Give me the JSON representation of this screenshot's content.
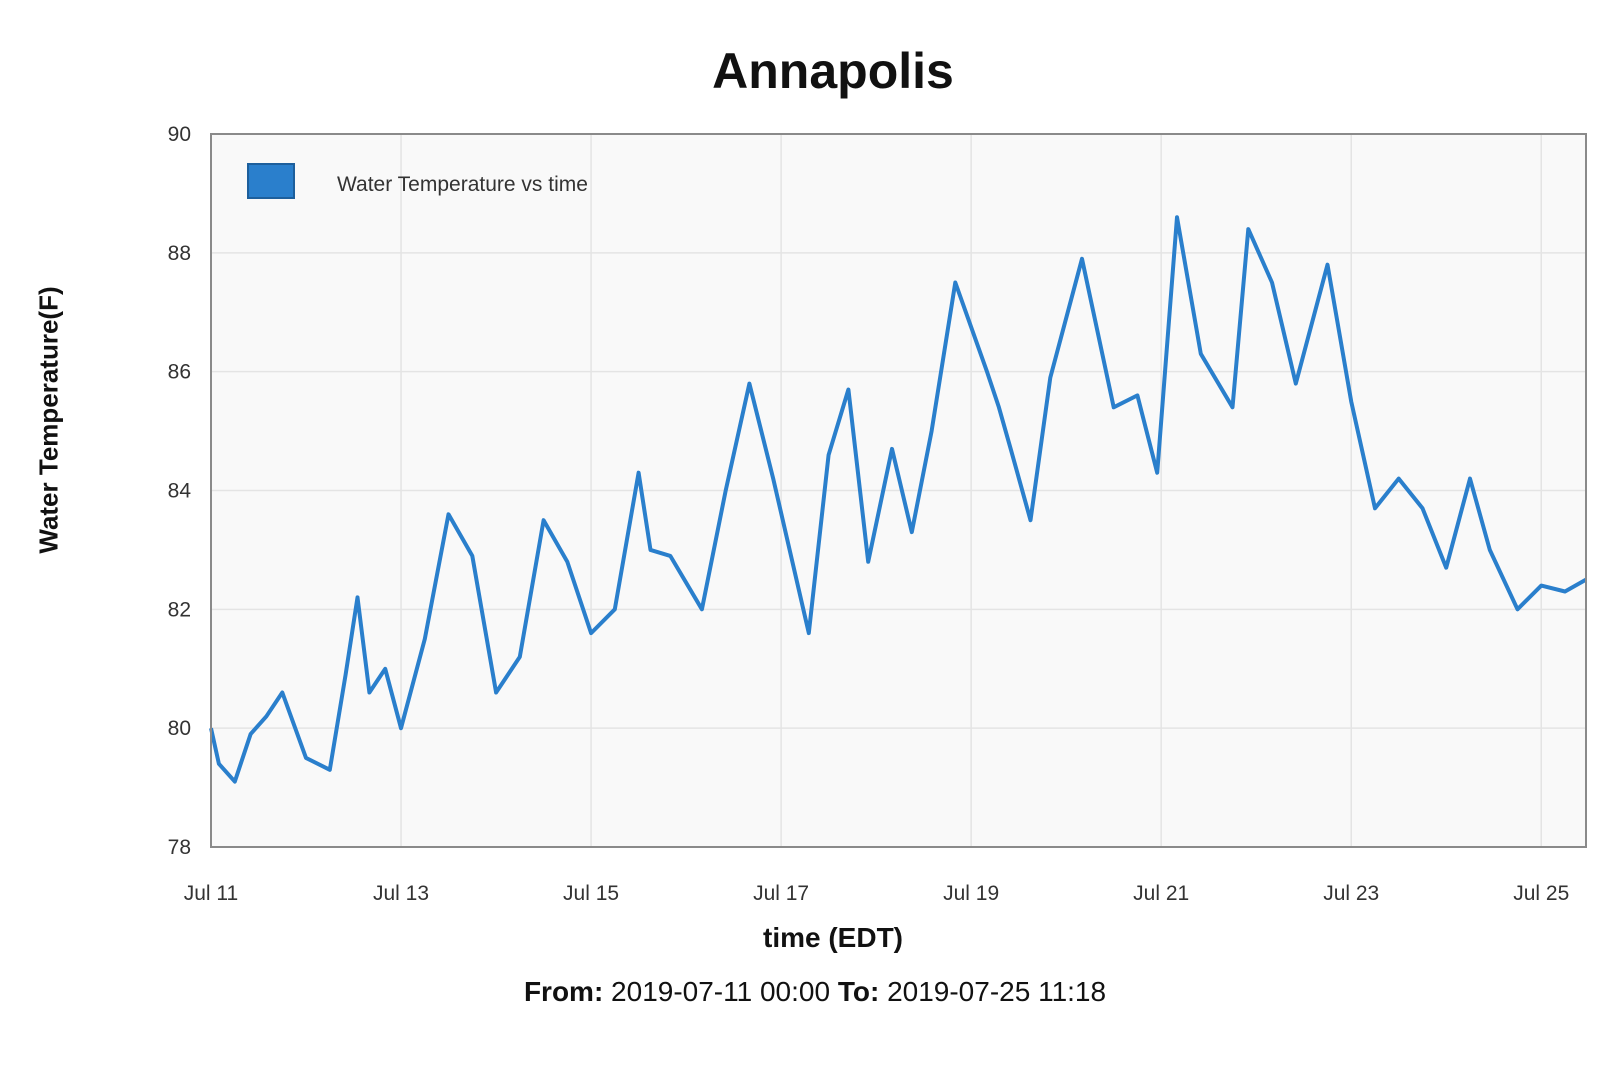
{
  "chart_data": {
    "type": "line",
    "title": "Annapolis",
    "xlabel": "time (EDT)",
    "ylabel": "Water Temperature(F)",
    "ylim": [
      78,
      90
    ],
    "xlim": [
      "2019-07-11 00:00",
      "2019-07-25 11:18"
    ],
    "x_ticks": [
      "Jul 11",
      "Jul 13",
      "Jul 15",
      "Jul 17",
      "Jul 19",
      "Jul 21",
      "Jul 23",
      "Jul 25"
    ],
    "y_ticks": [
      78,
      80,
      82,
      84,
      86,
      88,
      90
    ],
    "grid": true,
    "legend_position": "top-left",
    "series": [
      {
        "name": "Water Temperature vs time",
        "color": "#2a7fcc",
        "x": [
          "2019-07-11 00:00",
          "2019-07-11 02:00",
          "2019-07-11 06:00",
          "2019-07-11 10:00",
          "2019-07-11 14:00",
          "2019-07-11 18:00",
          "2019-07-12 00:00",
          "2019-07-12 06:00",
          "2019-07-12 10:00",
          "2019-07-12 13:00",
          "2019-07-12 16:00",
          "2019-07-12 20:00",
          "2019-07-13 00:00",
          "2019-07-13 06:00",
          "2019-07-13 12:00",
          "2019-07-13 18:00",
          "2019-07-14 00:00",
          "2019-07-14 06:00",
          "2019-07-14 12:00",
          "2019-07-14 18:00",
          "2019-07-15 00:00",
          "2019-07-15 06:00",
          "2019-07-15 12:00",
          "2019-07-15 15:00",
          "2019-07-15 20:00",
          "2019-07-16 04:00",
          "2019-07-16 10:00",
          "2019-07-16 16:00",
          "2019-07-16 22:00",
          "2019-07-17 07:00",
          "2019-07-17 12:00",
          "2019-07-17 17:00",
          "2019-07-17 22:00",
          "2019-07-18 04:00",
          "2019-07-18 09:00",
          "2019-07-18 14:00",
          "2019-07-18 20:00",
          "2019-07-19 04:00",
          "2019-07-19 07:00",
          "2019-07-19 10:00",
          "2019-07-19 15:00",
          "2019-07-19 20:00",
          "2019-07-20 04:00",
          "2019-07-20 12:00",
          "2019-07-20 18:00",
          "2019-07-20 23:00",
          "2019-07-21 04:00",
          "2019-07-21 10:00",
          "2019-07-21 18:00",
          "2019-07-21 22:00",
          "2019-07-22 04:00",
          "2019-07-22 10:00",
          "2019-07-22 18:00",
          "2019-07-23 00:00",
          "2019-07-23 06:00",
          "2019-07-23 12:00",
          "2019-07-23 18:00",
          "2019-07-24 00:00",
          "2019-07-24 06:00",
          "2019-07-24 11:00",
          "2019-07-24 18:00",
          "2019-07-25 00:00",
          "2019-07-25 06:00",
          "2019-07-25 11:18"
        ],
        "y": [
          80.0,
          79.4,
          79.1,
          79.9,
          80.2,
          80.6,
          79.5,
          79.3,
          80.9,
          82.2,
          80.6,
          81.0,
          80.0,
          81.5,
          83.6,
          82.9,
          80.6,
          81.2,
          83.5,
          82.8,
          81.6,
          82.0,
          84.3,
          83.0,
          82.9,
          82.0,
          84.0,
          85.8,
          84.2,
          81.6,
          84.6,
          85.7,
          82.8,
          84.7,
          83.3,
          85.0,
          87.5,
          86.0,
          85.4,
          84.7,
          83.5,
          85.9,
          87.9,
          85.4,
          85.6,
          84.3,
          88.6,
          86.3,
          85.4,
          88.4,
          87.5,
          85.8,
          87.8,
          85.5,
          83.7,
          84.2,
          83.7,
          82.7,
          84.2,
          83.0,
          82.0,
          82.4,
          82.3,
          82.5
        ]
      }
    ]
  },
  "range_line": {
    "from_label": "From:",
    "from_value": "2019-07-11 00:00",
    "to_label": "To:",
    "to_value": "2019-07-25 11:18"
  }
}
